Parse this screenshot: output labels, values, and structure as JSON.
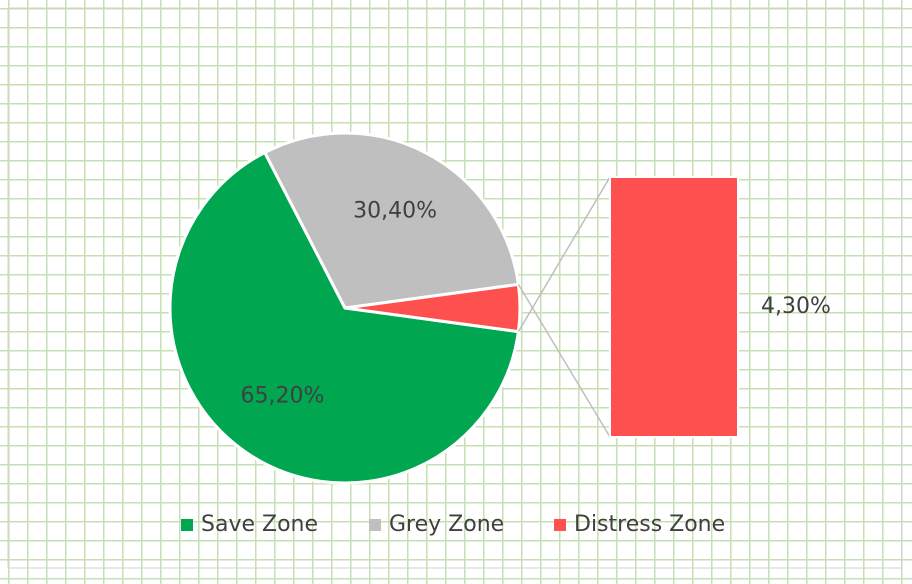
{
  "chart_data": {
    "type": "pie",
    "categories": [
      "Save Zone",
      "Grey Zone",
      "Distress Zone"
    ],
    "values": [
      65.2,
      30.4,
      4.3
    ],
    "value_labels": [
      "65,20%",
      "30,40%",
      "4,30%"
    ],
    "colors": [
      "#00a650",
      "#bfbfbf",
      "#ff5050"
    ],
    "legend": "bottom"
  }
}
